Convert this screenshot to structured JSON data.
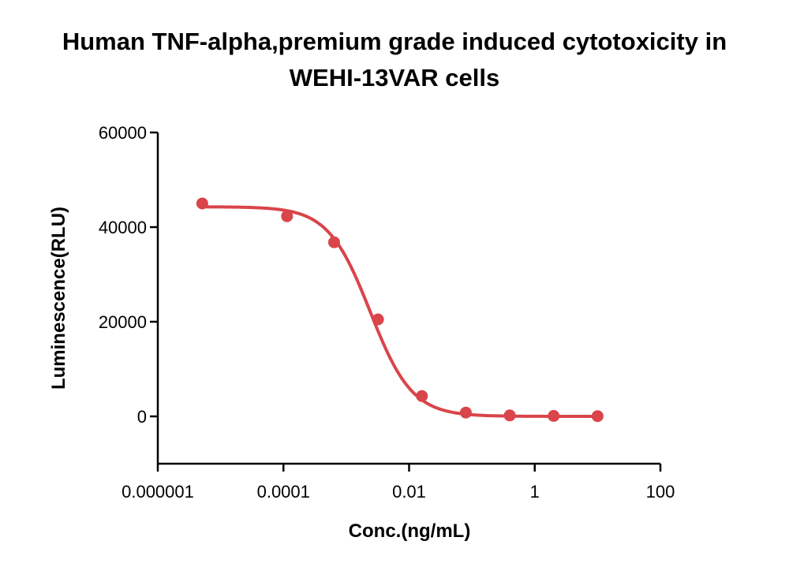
{
  "chart_data": {
    "type": "scatter",
    "title_line1": "Human TNF-alpha,premium grade induced cytotoxicity in",
    "title_line2": "WEHI-13VAR cells",
    "xlabel": "Conc.(ng/mL)",
    "ylabel": "Luminescence(RLU)",
    "x_scale": "log",
    "xlim": [
      1e-06,
      100
    ],
    "ylim": [
      -10000,
      60000
    ],
    "x_ticks": [
      {
        "value": 1e-06,
        "label": "0.000001"
      },
      {
        "value": 0.0001,
        "label": "0.0001"
      },
      {
        "value": 0.01,
        "label": "0.01"
      },
      {
        "value": 1,
        "label": "1"
      },
      {
        "value": 100,
        "label": "100"
      }
    ],
    "y_ticks": [
      {
        "value": 0,
        "label": "0"
      },
      {
        "value": 20000,
        "label": "20000"
      },
      {
        "value": 40000,
        "label": "40000"
      },
      {
        "value": 60000,
        "label": "60000"
      }
    ],
    "grid": false,
    "color": "#d9454a",
    "series": [
      {
        "x": [
          5.1e-06,
          0.000114,
          0.00064,
          0.0032,
          0.016,
          0.08,
          0.4,
          2.0,
          10.0
        ],
        "y": [
          45000,
          42300,
          36800,
          20500,
          4300,
          800,
          200,
          100,
          50
        ]
      }
    ],
    "fit": {
      "type": "4PL",
      "top": 44300,
      "bottom": 0,
      "ec50": 0.0024,
      "hill": 1.3
    }
  }
}
